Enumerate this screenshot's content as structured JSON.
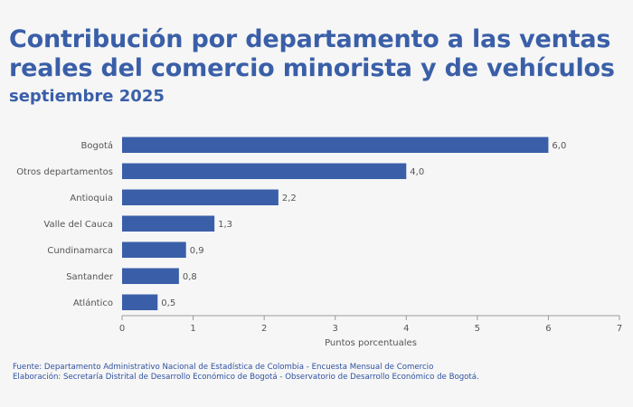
{
  "header": {
    "title": "Contribución por departamento a las ventas reales del comercio minorista y de vehículos",
    "subtitle": "septiembre 2025"
  },
  "footer": {
    "source": "Fuente: Departamento Administrativo Nacional de Estadística de Colombia - Encuesta Mensual de Comercio",
    "elaboration": "Elaboración: Secretaría Distrital de Desarrollo Económico de Bogotá - Observatorio de Desarrollo Económico de Bogotá."
  },
  "colors": {
    "bar": "#3a5fa8",
    "text": "#555555",
    "title": "#3a5fa8"
  },
  "chart_data": {
    "type": "bar",
    "orientation": "horizontal",
    "categories": [
      "Bogotá",
      "Otros departamentos",
      "Antioquia",
      "Valle del Cauca",
      "Cundinamarca",
      "Santander",
      "Atlántico"
    ],
    "values": [
      6.0,
      4.0,
      2.2,
      1.3,
      0.9,
      0.8,
      0.5
    ],
    "data_labels": [
      "6,0",
      "4,0",
      "2,2",
      "1,3",
      "0,9",
      "0,8",
      "0,5"
    ],
    "xlabel": "Puntos porcentuales",
    "xlim": [
      0,
      7
    ],
    "xticks": [
      0,
      1,
      2,
      3,
      4,
      5,
      6,
      7
    ],
    "grid": false
  }
}
